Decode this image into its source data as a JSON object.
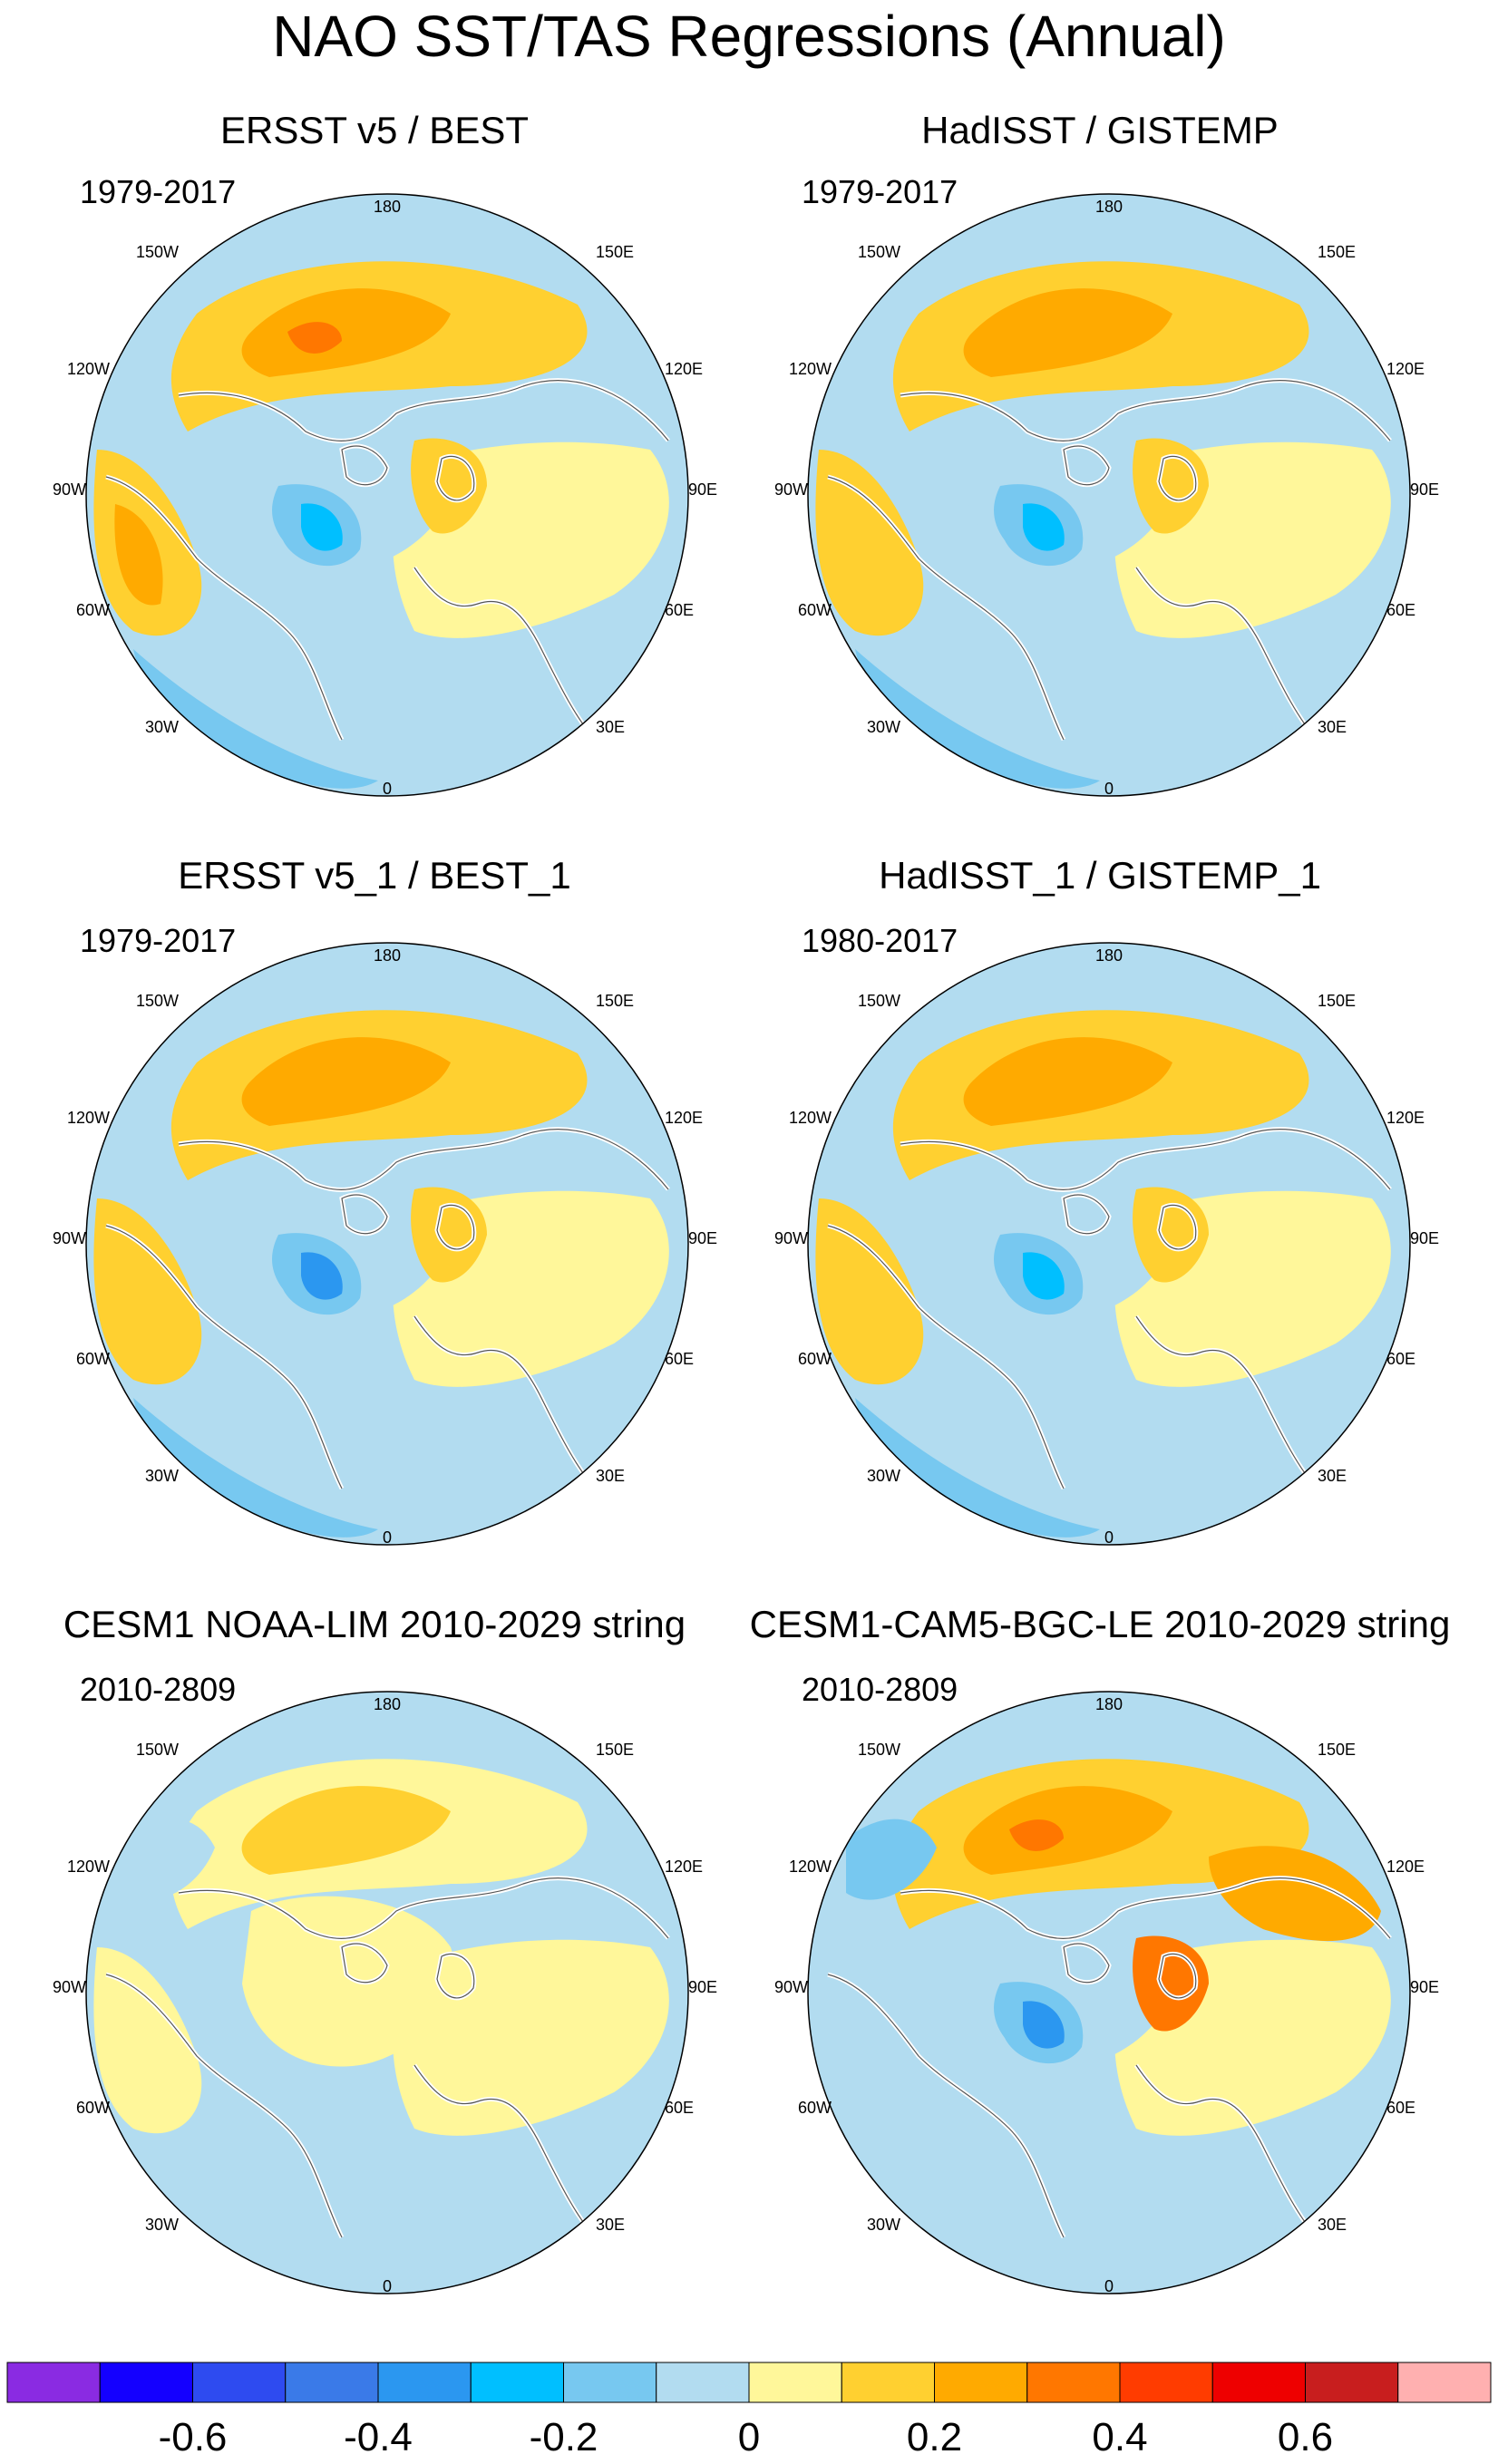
{
  "title": "NAO SST/TAS Regressions (Annual)",
  "panels": [
    {
      "title": "ERSST v5 / BEST",
      "period": "1979-2017"
    },
    {
      "title": "HadISST / GISTEMP",
      "period": "1979-2017"
    },
    {
      "title": "ERSST v5_1 / BEST_1",
      "period": "1979-2017"
    },
    {
      "title": "HadISST_1 / GISTEMP_1",
      "period": "1980-2017"
    },
    {
      "title": "CESM1 NOAA-LIM 2010-2029 string",
      "period": "2010-2809"
    },
    {
      "title": "CESM1-CAM5-BGC-LE 2010-2029 string",
      "period": "2010-2809"
    }
  ],
  "lon_labels": {
    "top": "180",
    "bottom": "0",
    "left_upper": "150W",
    "left_mid_upper": "120W",
    "left_mid": "90W",
    "left_mid_lower": "60W",
    "left_lower": "30W",
    "right_upper": "150E",
    "right_mid_upper": "120E",
    "right_mid": "90E",
    "right_mid_lower": "60E",
    "right_lower": "30E"
  },
  "colorbar": {
    "colors": [
      "#8a2be2",
      "#1400ff",
      "#2e4bf0",
      "#3a7ae8",
      "#2b97f0",
      "#00bfff",
      "#77c8f0",
      "#b2dcf0",
      "#fff79a",
      "#ffd030",
      "#ffaa00",
      "#ff7700",
      "#ff3c00",
      "#ee0000",
      "#c81e1e",
      "#ffb0b0"
    ],
    "tick_labels": [
      "-0.6",
      "-0.4",
      "-0.2",
      "0",
      "0.2",
      "0.4",
      "0.6"
    ],
    "tick_values": [
      -0.6,
      -0.4,
      -0.2,
      0,
      0.2,
      0.4,
      0.6
    ]
  },
  "palette": {
    "neg1": "#b2dcf0",
    "neg2": "#77c8f0",
    "neg3": "#00bfff",
    "neg4": "#2b97f0",
    "pos1": "#fff79a",
    "pos2": "#ffd030",
    "pos3": "#ffaa00",
    "pos4": "#ff7700",
    "pos5": "#ee0000",
    "land_edge": "#ffffff",
    "coast": "#555555"
  }
}
